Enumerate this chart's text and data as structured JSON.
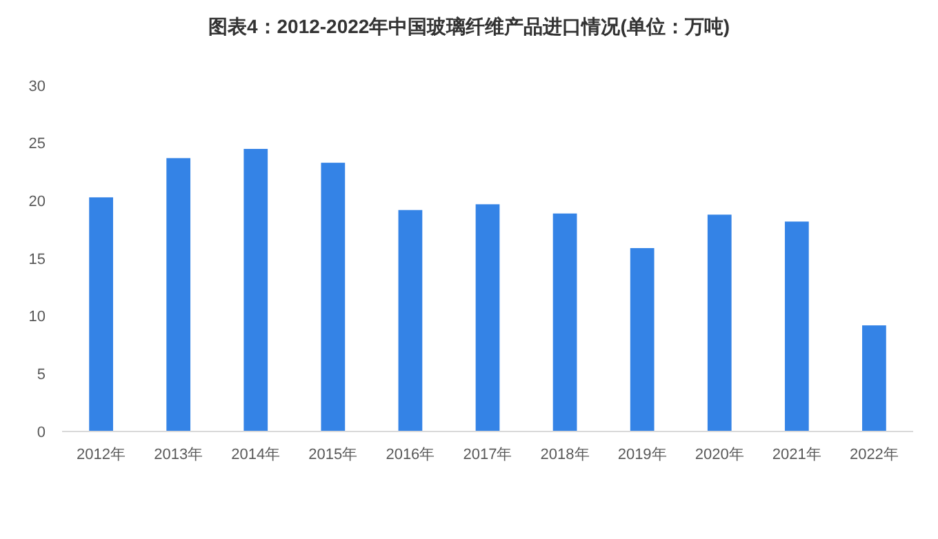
{
  "chart_data": {
    "type": "bar",
    "title": "图表4：2012-2022年中国玻璃纤维产品进口情况(单位：万吨)",
    "categories": [
      "2012年",
      "2013年",
      "2014年",
      "2015年",
      "2016年",
      "2017年",
      "2018年",
      "2019年",
      "2020年",
      "2021年",
      "2022年"
    ],
    "values": [
      20.3,
      23.7,
      24.5,
      23.3,
      19.2,
      19.7,
      18.9,
      15.9,
      18.8,
      18.2,
      9.2
    ],
    "color": "#3483e6",
    "ylim": [
      0,
      30
    ],
    "yticks": [
      0,
      5,
      10,
      15,
      20,
      25,
      30
    ],
    "grid": false
  }
}
